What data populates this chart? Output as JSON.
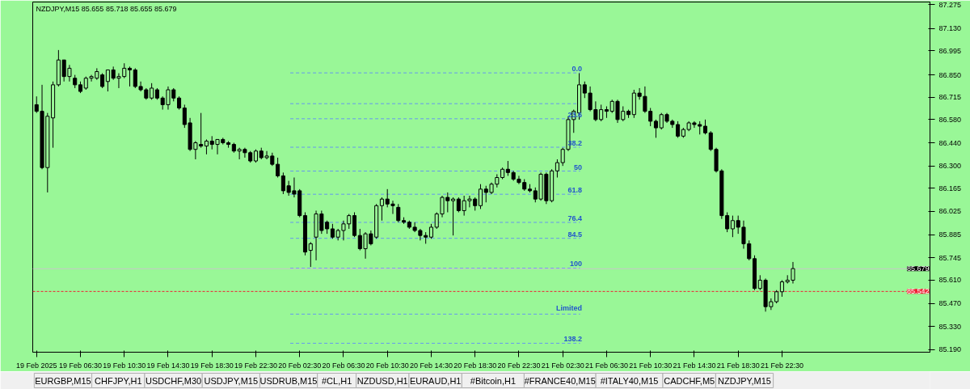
{
  "chart_data": {
    "type": "candlestick",
    "title": "NZDJPY,M15  85.655 85.718 85.655 85.679",
    "color": "#000000",
    "x": [
      "2025-02-19T02:30",
      "2025-02-19T03:00",
      "2025-02-19T03:30",
      "2025-02-19T04:00",
      "2025-02-19T04:30",
      "2025-02-19T05:00",
      "2025-02-19T05:30",
      "2025-02-19T06:00",
      "2025-02-19T06:30",
      "2025-02-19T07:00",
      "2025-02-19T07:30",
      "2025-02-19T08:00",
      "2025-02-19T08:30",
      "2025-02-19T09:00",
      "2025-02-19T09:30",
      "2025-02-19T10:00",
      "2025-02-19T10:30",
      "2025-02-19T11:00",
      "2025-02-19T11:30",
      "2025-02-19T12:00",
      "2025-02-19T12:30",
      "2025-02-19T13:00",
      "2025-02-19T13:30",
      "2025-02-19T14:00",
      "2025-02-19T14:30",
      "2025-02-19T15:00",
      "2025-02-19T15:30",
      "2025-02-19T16:00",
      "2025-02-19T16:30",
      "2025-02-19T17:00",
      "2025-02-19T17:30",
      "2025-02-19T18:00",
      "2025-02-19T18:30",
      "2025-02-19T19:00",
      "2025-02-19T19:30",
      "2025-02-19T20:00",
      "2025-02-19T20:30",
      "2025-02-19T21:00",
      "2025-02-19T21:30",
      "2025-02-19T22:00",
      "2025-02-19T22:30",
      "2025-02-19T23:00",
      "2025-02-19T23:30",
      "2025-02-20T00:00",
      "2025-02-20T00:30",
      "2025-02-20T01:00",
      "2025-02-20T01:30",
      "2025-02-20T02:00",
      "2025-02-20T02:30",
      "2025-02-20T03:00",
      "2025-02-20T03:30",
      "2025-02-20T04:00",
      "2025-02-20T04:30",
      "2025-02-20T05:00",
      "2025-02-20T05:30",
      "2025-02-20T06:00",
      "2025-02-20T06:30",
      "2025-02-20T07:00",
      "2025-02-20T07:30",
      "2025-02-20T08:00",
      "2025-02-20T08:30",
      "2025-02-20T09:00",
      "2025-02-20T09:30",
      "2025-02-20T10:00",
      "2025-02-20T10:30",
      "2025-02-20T11:00",
      "2025-02-20T11:30",
      "2025-02-20T12:00",
      "2025-02-20T12:30",
      "2025-02-20T13:00",
      "2025-02-20T13:30",
      "2025-02-20T14:00",
      "2025-02-20T14:30",
      "2025-02-20T15:00",
      "2025-02-20T15:30",
      "2025-02-20T16:00",
      "2025-02-20T16:30",
      "2025-02-20T17:00",
      "2025-02-20T17:30",
      "2025-02-20T18:00",
      "2025-02-20T18:30",
      "2025-02-20T19:00",
      "2025-02-20T19:30",
      "2025-02-20T20:00",
      "2025-02-20T20:30",
      "2025-02-20T21:00",
      "2025-02-20T21:30",
      "2025-02-20T22:00",
      "2025-02-20T22:30",
      "2025-02-20T23:00",
      "2025-02-20T23:30",
      "2025-02-21T00:00",
      "2025-02-21T00:30",
      "2025-02-21T01:00",
      "2025-02-21T01:30",
      "2025-02-21T02:00",
      "2025-02-21T02:30",
      "2025-02-21T03:00",
      "2025-02-21T03:30",
      "2025-02-21T04:00",
      "2025-02-21T04:30",
      "2025-02-21T05:00",
      "2025-02-21T05:30",
      "2025-02-21T06:00",
      "2025-02-21T06:30",
      "2025-02-21T07:00",
      "2025-02-21T07:30",
      "2025-02-21T08:00",
      "2025-02-21T08:30",
      "2025-02-21T09:00",
      "2025-02-21T09:30",
      "2025-02-21T10:00",
      "2025-02-21T10:30",
      "2025-02-21T11:00",
      "2025-02-21T11:30",
      "2025-02-21T12:00",
      "2025-02-21T12:30",
      "2025-02-21T13:00",
      "2025-02-21T13:30",
      "2025-02-21T14:00",
      "2025-02-21T14:30",
      "2025-02-21T15:00",
      "2025-02-21T15:30",
      "2025-02-21T16:00",
      "2025-02-21T16:30",
      "2025-02-21T17:00",
      "2025-02-21T17:30",
      "2025-02-21T18:00",
      "2025-02-21T18:30",
      "2025-02-21T19:00",
      "2025-02-21T19:30",
      "2025-02-21T20:00",
      "2025-02-21T20:30",
      "2025-02-21T21:00",
      "2025-02-21T21:30",
      "2025-02-21T22:00",
      "2025-02-21T22:30",
      "2025-02-21T23:00",
      "2025-02-21T23:30"
    ],
    "ohlc": [
      [
        86.67,
        86.72,
        86.62,
        86.63
      ],
      [
        86.63,
        86.79,
        86.28,
        86.29
      ],
      [
        86.29,
        86.62,
        86.14,
        86.6
      ],
      [
        86.59,
        86.81,
        86.41,
        86.79
      ],
      [
        86.79,
        87.0,
        86.78,
        86.94
      ],
      [
        86.94,
        86.94,
        86.81,
        86.84
      ],
      [
        86.84,
        86.91,
        86.81,
        86.89
      ],
      [
        86.83,
        86.85,
        86.77,
        86.79
      ],
      [
        86.79,
        86.81,
        86.74,
        86.75
      ],
      [
        86.77,
        86.84,
        86.76,
        86.83
      ],
      [
        86.83,
        86.85,
        86.81,
        86.84
      ],
      [
        86.83,
        86.89,
        86.82,
        86.87
      ],
      [
        86.85,
        86.86,
        86.77,
        86.78
      ],
      [
        86.81,
        86.88,
        86.75,
        86.88
      ],
      [
        86.88,
        86.9,
        86.82,
        86.83
      ],
      [
        86.83,
        86.86,
        86.77,
        86.84
      ],
      [
        86.84,
        86.92,
        86.83,
        86.89
      ],
      [
        86.89,
        86.9,
        86.78,
        86.88
      ],
      [
        86.88,
        86.89,
        86.77,
        86.78
      ],
      [
        86.78,
        86.81,
        86.75,
        86.76
      ],
      [
        86.76,
        86.77,
        86.7,
        86.71
      ],
      [
        86.71,
        86.8,
        86.7,
        86.77
      ],
      [
        86.76,
        86.77,
        86.7,
        86.71
      ],
      [
        86.71,
        86.72,
        86.64,
        86.67
      ],
      [
        86.67,
        86.78,
        86.64,
        86.76
      ],
      [
        86.76,
        86.77,
        86.69,
        86.71
      ],
      [
        86.71,
        86.72,
        86.64,
        86.65
      ],
      [
        86.65,
        86.67,
        86.53,
        86.55
      ],
      [
        86.56,
        86.59,
        86.39,
        86.4
      ],
      [
        86.4,
        86.45,
        86.34,
        86.44
      ],
      [
        86.43,
        86.62,
        86.41,
        86.42
      ],
      [
        86.42,
        86.46,
        86.37,
        86.45
      ],
      [
        86.45,
        86.48,
        86.4,
        86.43
      ],
      [
        86.43,
        86.46,
        86.37,
        86.46
      ],
      [
        86.46,
        86.47,
        86.43,
        86.44
      ],
      [
        86.44,
        86.45,
        86.41,
        86.43
      ],
      [
        86.43,
        86.44,
        86.38,
        86.39
      ],
      [
        86.39,
        86.41,
        86.34,
        86.4
      ],
      [
        86.4,
        86.41,
        86.35,
        86.38
      ],
      [
        86.38,
        86.39,
        86.32,
        86.33
      ],
      [
        86.33,
        86.4,
        86.32,
        86.39
      ],
      [
        86.39,
        86.41,
        86.34,
        86.35
      ],
      [
        86.35,
        86.39,
        86.34,
        86.36
      ],
      [
        86.36,
        86.38,
        86.3,
        86.31
      ],
      [
        86.31,
        86.35,
        86.23,
        86.24
      ],
      [
        86.24,
        86.26,
        86.13,
        86.15
      ],
      [
        86.18,
        86.21,
        86.12,
        86.14
      ],
      [
        86.15,
        86.23,
        86.11,
        86.13
      ],
      [
        86.15,
        86.16,
        85.99,
        86.0
      ],
      [
        86.0,
        86.02,
        85.76,
        85.78
      ],
      [
        85.79,
        85.84,
        85.69,
        85.83
      ],
      [
        85.87,
        86.03,
        85.73,
        86.01
      ],
      [
        86.01,
        86.03,
        85.89,
        85.91
      ],
      [
        85.96,
        85.97,
        85.89,
        85.92
      ],
      [
        85.92,
        85.95,
        85.86,
        85.87
      ],
      [
        85.87,
        85.92,
        85.85,
        85.91
      ],
      [
        85.91,
        85.97,
        85.85,
        85.95
      ],
      [
        85.95,
        86.01,
        85.92,
        86.0
      ],
      [
        86.0,
        86.02,
        85.87,
        85.88
      ],
      [
        85.88,
        85.92,
        85.79,
        85.8
      ],
      [
        85.8,
        85.9,
        85.74,
        85.89
      ],
      [
        85.89,
        85.91,
        85.82,
        85.83
      ],
      [
        85.87,
        86.07,
        85.86,
        86.06
      ],
      [
        86.06,
        86.11,
        85.97,
        86.1
      ],
      [
        86.1,
        86.16,
        86.05,
        86.07
      ],
      [
        86.07,
        86.09,
        86.01,
        86.06
      ],
      [
        86.05,
        86.07,
        85.96,
        85.97
      ],
      [
        85.97,
        85.99,
        85.95,
        85.96
      ],
      [
        85.96,
        85.97,
        85.92,
        85.93
      ],
      [
        85.93,
        85.96,
        85.9,
        85.91
      ],
      [
        85.91,
        85.92,
        85.85,
        85.88
      ],
      [
        85.88,
        85.9,
        85.83,
        85.87
      ],
      [
        85.87,
        85.95,
        85.86,
        85.93
      ],
      [
        85.93,
        86.02,
        85.92,
        86.01
      ],
      [
        86.01,
        86.12,
        85.99,
        86.11
      ],
      [
        86.11,
        86.14,
        86.02,
        86.09
      ],
      [
        86.09,
        86.11,
        85.88,
        86.1
      ],
      [
        86.1,
        86.11,
        86.02,
        86.03
      ],
      [
        86.03,
        86.12,
        86.0,
        86.09
      ],
      [
        86.09,
        86.12,
        86.05,
        86.1
      ],
      [
        86.1,
        86.11,
        86.03,
        86.06
      ],
      [
        86.06,
        86.19,
        86.04,
        86.16
      ],
      [
        86.16,
        86.18,
        86.08,
        86.14
      ],
      [
        86.14,
        86.2,
        86.13,
        86.19
      ],
      [
        86.19,
        86.25,
        86.17,
        86.23
      ],
      [
        86.23,
        86.29,
        86.22,
        86.28
      ],
      [
        86.28,
        86.33,
        86.24,
        86.26
      ],
      [
        86.26,
        86.27,
        86.21,
        86.22
      ],
      [
        86.22,
        86.24,
        86.19,
        86.2
      ],
      [
        86.2,
        86.22,
        86.15,
        86.16
      ],
      [
        86.16,
        86.19,
        86.14,
        86.15
      ],
      [
        86.15,
        86.17,
        86.08,
        86.1
      ],
      [
        86.1,
        86.26,
        86.09,
        86.25
      ],
      [
        86.25,
        86.26,
        86.07,
        86.09
      ],
      [
        86.09,
        86.28,
        86.08,
        86.27
      ],
      [
        86.27,
        86.34,
        86.23,
        86.32
      ],
      [
        86.32,
        86.41,
        86.3,
        86.4
      ],
      [
        86.4,
        86.6,
        86.39,
        86.58
      ],
      [
        86.58,
        86.64,
        86.5,
        86.63
      ],
      [
        86.62,
        86.86,
        86.58,
        86.79
      ],
      [
        86.79,
        86.81,
        86.71,
        86.74
      ],
      [
        86.74,
        86.78,
        86.63,
        86.64
      ],
      [
        86.64,
        86.69,
        86.57,
        86.58
      ],
      [
        86.58,
        86.67,
        86.57,
        86.64
      ],
      [
        86.64,
        86.66,
        86.59,
        86.63
      ],
      [
        86.63,
        86.7,
        86.62,
        86.69
      ],
      [
        86.69,
        86.7,
        86.56,
        86.58
      ],
      [
        86.58,
        86.66,
        86.57,
        86.63
      ],
      [
        86.63,
        86.64,
        86.59,
        86.61
      ],
      [
        86.61,
        86.76,
        86.59,
        86.74
      ],
      [
        86.74,
        86.77,
        86.7,
        86.72
      ],
      [
        86.72,
        86.78,
        86.62,
        86.63
      ],
      [
        86.63,
        86.65,
        86.54,
        86.57
      ],
      [
        86.57,
        86.58,
        86.47,
        86.53
      ],
      [
        86.53,
        86.62,
        86.52,
        86.61
      ],
      [
        86.61,
        86.62,
        86.56,
        86.57
      ],
      [
        86.57,
        86.58,
        86.53,
        86.55
      ],
      [
        86.55,
        86.57,
        86.47,
        86.48
      ],
      [
        86.48,
        86.53,
        86.47,
        86.52
      ],
      [
        86.52,
        86.57,
        86.51,
        86.56
      ],
      [
        86.56,
        86.57,
        86.53,
        86.55
      ],
      [
        86.55,
        86.57,
        86.49,
        86.54
      ],
      [
        86.54,
        86.58,
        86.49,
        86.5
      ],
      [
        86.5,
        86.51,
        86.39,
        86.4
      ],
      [
        86.4,
        86.41,
        86.26,
        86.27
      ],
      [
        86.27,
        86.28,
        85.98,
        86.0
      ],
      [
        86.0,
        86.02,
        85.9,
        85.92
      ],
      [
        85.92,
        86.0,
        85.87,
        85.97
      ],
      [
        85.97,
        86.0,
        85.89,
        85.93
      ],
      [
        85.93,
        85.97,
        85.8,
        85.83
      ],
      [
        85.83,
        85.85,
        85.73,
        85.74
      ],
      [
        85.74,
        85.76,
        85.55,
        85.56
      ],
      [
        85.56,
        85.64,
        85.55,
        85.61
      ],
      [
        85.61,
        85.62,
        85.42,
        85.45
      ],
      [
        85.45,
        85.5,
        85.43,
        85.48
      ],
      [
        85.48,
        85.55,
        85.47,
        85.54
      ],
      [
        85.54,
        85.61,
        85.51,
        85.6
      ],
      [
        85.6,
        85.64,
        85.59,
        85.61
      ],
      [
        85.61,
        85.72,
        85.59,
        85.68
      ]
    ],
    "xlim": [
      "2025-02-19T02:09",
      "2025-02-22T12:00"
    ],
    "xticks": [
      {
        "value": "2025-02-19T02:30",
        "label": "19 Feb 2025"
      },
      {
        "value": "2025-02-19T06:30",
        "label": "19 Feb 06:30"
      },
      {
        "value": "2025-02-19T10:30",
        "label": "19 Feb 10:30"
      },
      {
        "value": "2025-02-19T14:30",
        "label": "19 Feb 14:30"
      },
      {
        "value": "2025-02-19T18:30",
        "label": "19 Feb 18:30"
      },
      {
        "value": "2025-02-19T22:30",
        "label": "19 Feb 22:30"
      },
      {
        "value": "2025-02-20T02:30",
        "label": "20 Feb 02:30"
      },
      {
        "value": "2025-02-20T06:30",
        "label": "20 Feb 06:30"
      },
      {
        "value": "2025-02-20T10:30",
        "label": "20 Feb 10:30"
      },
      {
        "value": "2025-02-20T14:30",
        "label": "20 Feb 14:30"
      },
      {
        "value": "2025-02-20T18:30",
        "label": "20 Feb 18:30"
      },
      {
        "value": "2025-02-20T22:30",
        "label": "20 Feb 22:30"
      },
      {
        "value": "2025-02-21T02:30",
        "label": "21 Feb 02:30"
      },
      {
        "value": "2025-02-21T06:30",
        "label": "21 Feb 06:30"
      },
      {
        "value": "2025-02-21T10:30",
        "label": "21 Feb 10:30"
      },
      {
        "value": "2025-02-21T14:30",
        "label": "21 Feb 14:30"
      },
      {
        "value": "2025-02-21T18:30",
        "label": "21 Feb 18:30"
      },
      {
        "value": "2025-02-21T22:30",
        "label": "21 Feb 22:30"
      }
    ],
    "ylim": [
      85.175,
      87.29
    ],
    "yticks": [
      87.275,
      {
        "value": 87.13,
        "label": "87.130"
      },
      86.995,
      {
        "value": 86.85,
        "label": "86.850"
      },
      86.715,
      {
        "value": 86.58,
        "label": "86.580"
      },
      {
        "value": 86.44,
        "label": "86.440"
      },
      {
        "value": 86.3,
        "label": "86.300"
      },
      86.165,
      86.025,
      85.885,
      {
        "value": 85.745,
        "label": "85.745"
      },
      {
        "value": 85.61,
        "label": "85.610"
      },
      {
        "value": 85.47,
        "label": "85.470"
      },
      {
        "value": 85.33,
        "label": "85.330"
      },
      {
        "value": 85.19,
        "label": "85.190"
      }
    ],
    "ref_lines": [
      {
        "axis": "y",
        "value": 86.862,
        "color": "#6699ee",
        "line_style": "dashed"
      },
      {
        "axis": "y",
        "value": 86.676,
        "color": "#6699ee",
        "line_style": "dashed"
      },
      {
        "axis": "y",
        "value": 86.585,
        "color": "#6699ee",
        "line_style": "dashed"
      },
      {
        "axis": "y",
        "value": 86.413,
        "color": "#6699ee",
        "line_style": "dashed"
      },
      {
        "axis": "y",
        "value": 86.269,
        "color": "#6699ee",
        "line_style": "dashed"
      },
      {
        "axis": "y",
        "value": 86.129,
        "color": "#6699ee",
        "line_style": "dashed"
      },
      {
        "axis": "y",
        "value": 85.959,
        "color": "#6699ee",
        "line_style": "dashed"
      },
      {
        "axis": "y",
        "value": 85.863,
        "color": "#6699ee",
        "line_style": "dashed"
      },
      {
        "axis": "y",
        "value": 85.683,
        "color": "#6699ee",
        "line_style": "dashed"
      },
      {
        "axis": "y",
        "value": 85.405,
        "color": "#6699ee",
        "line_style": "dashed"
      },
      {
        "axis": "y",
        "value": 85.229,
        "color": "#6699ee",
        "line_style": "dashed"
      },
      {
        "axis": "y",
        "value": 85.679,
        "label": "85.679",
        "color": "#c8c8c8",
        "line_style": "solid"
      },
      {
        "axis": "y",
        "value": 85.542,
        "label": "85.542",
        "color": "#ee2233",
        "line_style": "dotted"
      }
    ],
    "annotations": [
      {
        "text": "0.0",
        "x": "2025-02-21T04:15",
        "y": 86.862
      },
      {
        "text": "23.6",
        "x": "2025-02-21T04:15",
        "y": 86.585
      },
      {
        "text": "38.2",
        "x": "2025-02-21T04:15",
        "y": 86.413
      },
      {
        "text": "50",
        "x": "2025-02-21T04:15",
        "y": 86.269
      },
      {
        "text": "61.8",
        "x": "2025-02-21T04:15",
        "y": 86.129
      },
      {
        "text": "76.4",
        "x": "2025-02-21T04:15",
        "y": 85.959
      },
      {
        "text": "84.5",
        "x": "2025-02-21T04:15",
        "y": 85.863
      },
      {
        "text": "100",
        "x": "2025-02-21T04:15",
        "y": 85.683
      },
      {
        "text": "Limited",
        "x": "2025-02-21T04:15",
        "y": 85.405
      },
      {
        "text": "138.2",
        "x": "2025-02-21T04:15",
        "y": 85.229
      },
      "EURGBP,M15",
      "CHFJPY,H1",
      "USDCHF,M30",
      "USDJPY,M15",
      "USDRUB,M15",
      "#CL,H1",
      "NZDUSD,H1",
      "EURAUD,H1",
      "#Bitcoin,H1",
      "#FRANCE40,M15",
      "#ITALY40,M15",
      "CADCHF,M5",
      "NZDJPY,M15"
    ]
  }
}
